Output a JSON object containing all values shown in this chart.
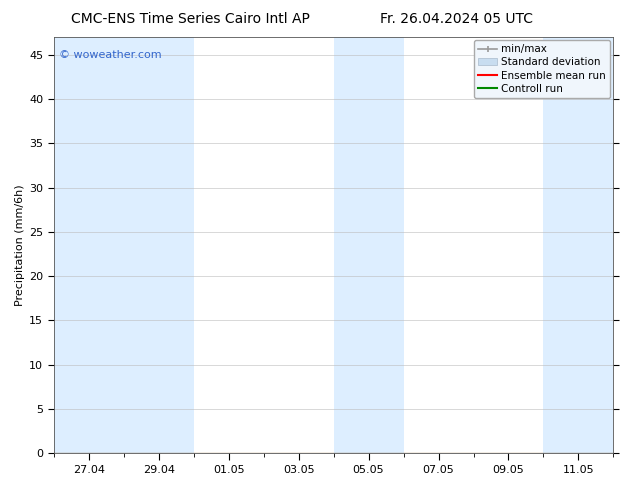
{
  "title_left": "CMC-ENS Time Series Cairo Intl AP",
  "title_right": "Fr. 26.04.2024 05 UTC",
  "ylabel": "Precipitation (mm/6h)",
  "watermark": "© woweather.com",
  "watermark_color": "#3366cc",
  "ylim": [
    0,
    47
  ],
  "yticks": [
    0,
    5,
    10,
    15,
    20,
    25,
    30,
    35,
    40,
    45
  ],
  "xlim": [
    0,
    16
  ],
  "x_tick_labels": [
    "27.04",
    "29.04",
    "01.05",
    "03.05",
    "05.05",
    "07.05",
    "09.05",
    "11.05"
  ],
  "x_tick_positions": [
    1,
    3,
    5,
    7,
    9,
    11,
    13,
    15
  ],
  "shaded_regions": [
    [
      0,
      2
    ],
    [
      2,
      4
    ],
    [
      8,
      10
    ],
    [
      14,
      16
    ]
  ],
  "shaded_color": "#ddeeff",
  "bg_color": "#ffffff",
  "plot_bg_color": "#ffffff",
  "legend_items": [
    {
      "label": "min/max",
      "color": "#aaaaaa",
      "style": "errorbar"
    },
    {
      "label": "Standard deviation",
      "color": "#c8ddf0",
      "style": "fill"
    },
    {
      "label": "Ensemble mean run",
      "color": "#ff0000",
      "style": "line"
    },
    {
      "label": "Controll run",
      "color": "#008800",
      "style": "line"
    }
  ],
  "title_fontsize": 10,
  "tick_fontsize": 8,
  "ylabel_fontsize": 8,
  "legend_fontsize": 7.5,
  "watermark_fontsize": 8
}
